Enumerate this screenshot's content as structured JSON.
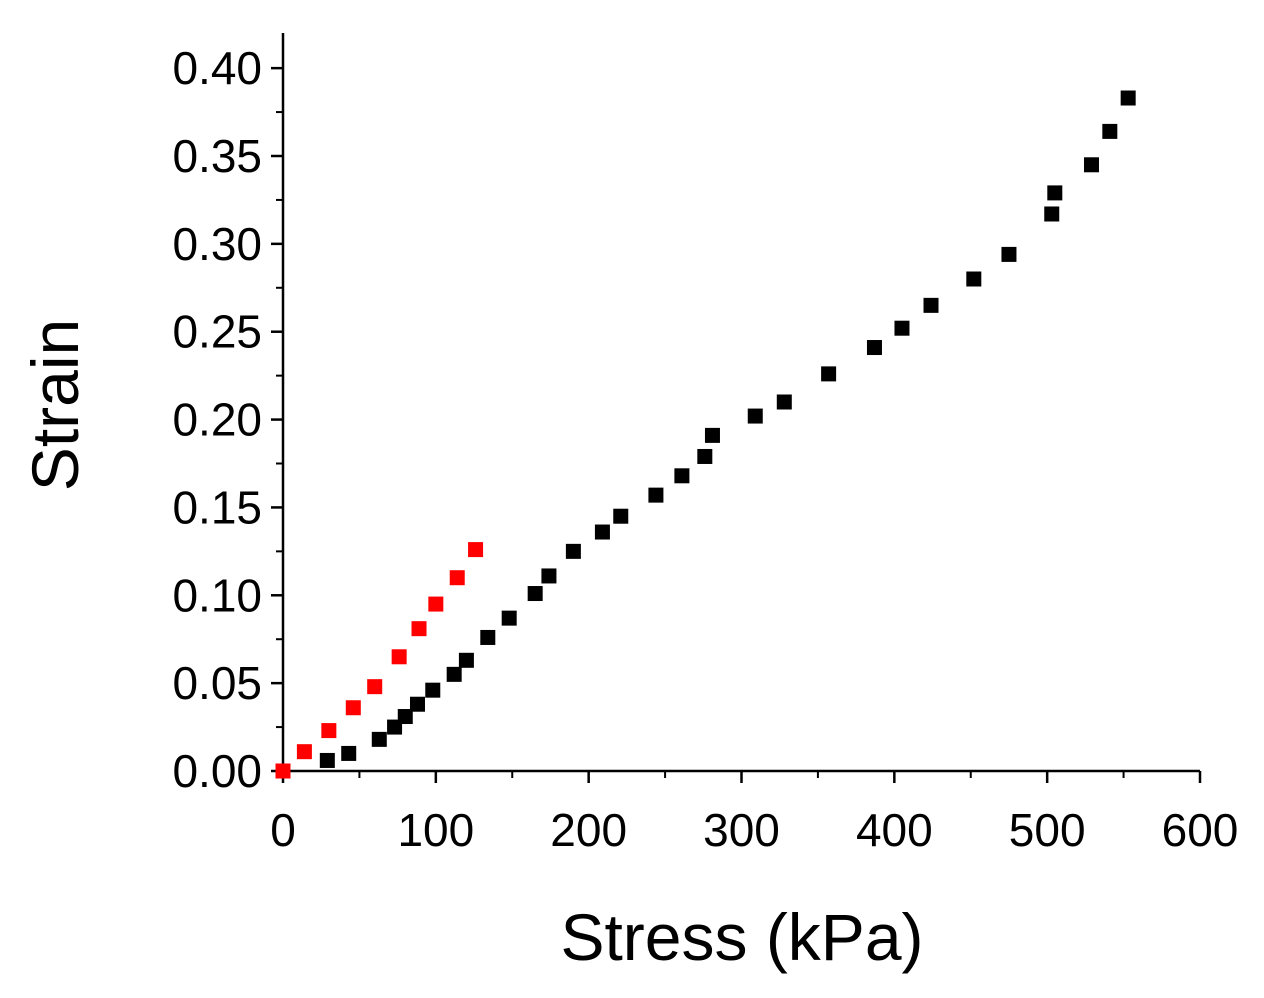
{
  "chart_data": {
    "type": "scatter",
    "title": "",
    "xlabel": "Stress (kPa)",
    "ylabel": "Strain",
    "xlim": [
      0,
      600
    ],
    "ylim": [
      0,
      0.42
    ],
    "grid": false,
    "legend": "none",
    "x_ticks": [
      0,
      100,
      200,
      300,
      400,
      500,
      600
    ],
    "x_tick_labels": [
      "0",
      "100",
      "200",
      "300",
      "400",
      "500",
      "600"
    ],
    "y_ticks": [
      0.0,
      0.05,
      0.1,
      0.15,
      0.2,
      0.25,
      0.3,
      0.35,
      0.4
    ],
    "y_tick_labels": [
      "0.00",
      "0.05",
      "0.10",
      "0.15",
      "0.20",
      "0.25",
      "0.30",
      "0.35",
      "0.40"
    ],
    "series": [
      {
        "name": "black",
        "color": "#000000",
        "points": [
          [
            29,
            0.006
          ],
          [
            43,
            0.01
          ],
          [
            63,
            0.018
          ],
          [
            73,
            0.025
          ],
          [
            80,
            0.031
          ],
          [
            88,
            0.038
          ],
          [
            98,
            0.046
          ],
          [
            112,
            0.055
          ],
          [
            120,
            0.063
          ],
          [
            134,
            0.076
          ],
          [
            148,
            0.087
          ],
          [
            165,
            0.101
          ],
          [
            174,
            0.111
          ],
          [
            190,
            0.125
          ],
          [
            209,
            0.136
          ],
          [
            221,
            0.145
          ],
          [
            244,
            0.157
          ],
          [
            261,
            0.168
          ],
          [
            276,
            0.179
          ],
          [
            281,
            0.191
          ],
          [
            309,
            0.202
          ],
          [
            328,
            0.21
          ],
          [
            357,
            0.226
          ],
          [
            387,
            0.241
          ],
          [
            405,
            0.252
          ],
          [
            424,
            0.265
          ],
          [
            452,
            0.28
          ],
          [
            475,
            0.294
          ],
          [
            503,
            0.317
          ],
          [
            505,
            0.329
          ],
          [
            529,
            0.345
          ],
          [
            541,
            0.364
          ],
          [
            553,
            0.383
          ]
        ]
      },
      {
        "name": "red",
        "color": "#ff0000",
        "points": [
          [
            0,
            0.0
          ],
          [
            14,
            0.011
          ],
          [
            30,
            0.023
          ],
          [
            46,
            0.036
          ],
          [
            60,
            0.048
          ],
          [
            76,
            0.065
          ],
          [
            89,
            0.081
          ],
          [
            100,
            0.095
          ],
          [
            114,
            0.11
          ],
          [
            126,
            0.126
          ]
        ]
      }
    ]
  }
}
